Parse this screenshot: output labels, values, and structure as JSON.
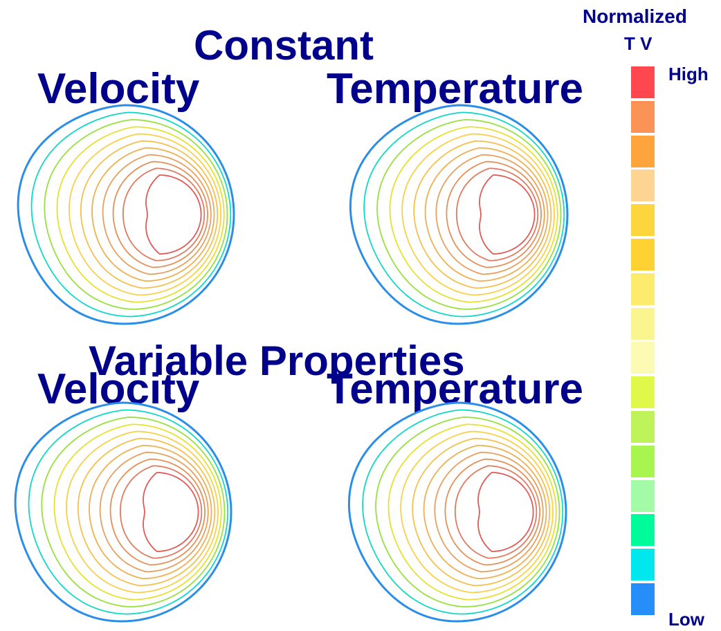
{
  "sections": {
    "constant": "Constant",
    "variable": "Variable Properties"
  },
  "panels": {
    "velocity_label": "Velocity",
    "temperature_label": "Temperature"
  },
  "legend": {
    "title": "Normalized",
    "units": "T V",
    "high": "High",
    "low": "Low",
    "colors": [
      "#ff4750",
      "#fb9256",
      "#fda43c",
      "#fdd491",
      "#fdd63e",
      "#fdd232",
      "#fdeb6e",
      "#fbf58f",
      "#fdfbb3",
      "#e0f84a",
      "#bef359",
      "#a7f54e",
      "#a3fba7",
      "#00fb9a",
      "#00e8ed",
      "#268ef8"
    ]
  },
  "contour_colors": [
    "#2a8ee8",
    "#10d8c8",
    "#98e040",
    "#e8e030",
    "#f8d04a",
    "#f4c050",
    "#eeb050",
    "#e8a060",
    "#e49058",
    "#e07a60",
    "#e05a58"
  ]
}
